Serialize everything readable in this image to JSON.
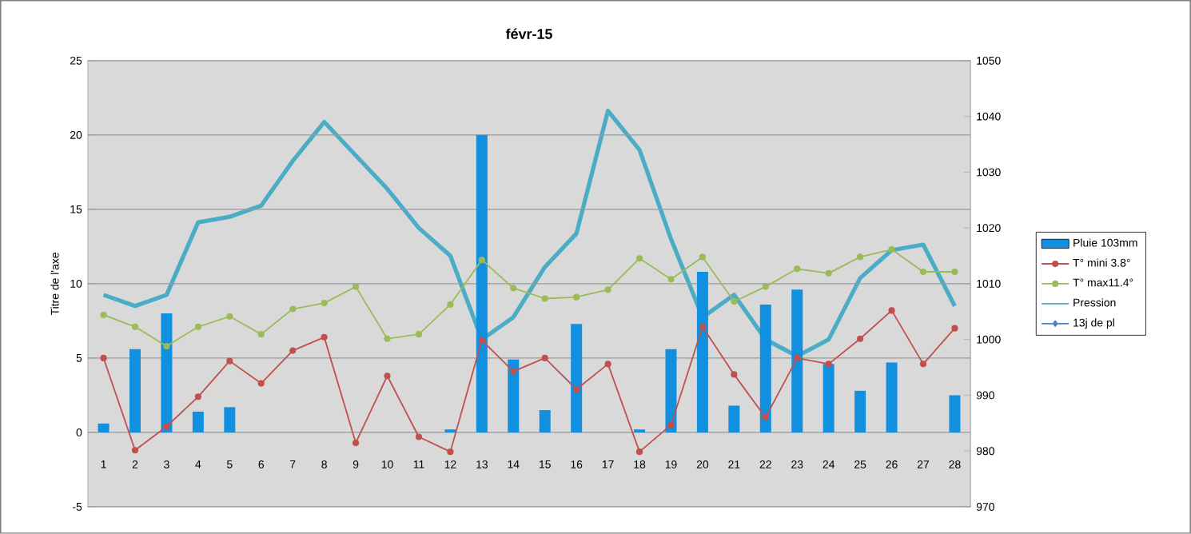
{
  "chart_data": {
    "type": "bar",
    "title": "févr-15",
    "ylabel": "Titre de l'axe",
    "categories": [
      "1",
      "2",
      "3",
      "4",
      "5",
      "6",
      "7",
      "8",
      "9",
      "10",
      "11",
      "12",
      "13",
      "14",
      "15",
      "16",
      "17",
      "18",
      "19",
      "20",
      "21",
      "22",
      "23",
      "24",
      "25",
      "26",
      "27",
      "28"
    ],
    "series": [
      {
        "name": "Pluie 103mm",
        "color": "#1290e0",
        "values": [
          0.6,
          5.6,
          8.0,
          1.4,
          1.7,
          null,
          null,
          null,
          null,
          null,
          null,
          0.2,
          20.0,
          4.9,
          1.5,
          7.3,
          null,
          0.2,
          5.6,
          10.8,
          1.8,
          8.6,
          9.6,
          4.6,
          2.8,
          4.7,
          null,
          2.5
        ]
      },
      {
        "name": "T° mini 3.8°",
        "type": "line",
        "color": "#c0504d",
        "marker": "circle",
        "values": [
          5.0,
          -1.2,
          0.4,
          2.4,
          4.8,
          3.3,
          5.5,
          6.4,
          -0.7,
          3.8,
          -0.3,
          -1.3,
          6.2,
          4.1,
          5.0,
          2.9,
          4.6,
          -1.3,
          0.5,
          7.1,
          3.9,
          1.0,
          5.0,
          4.6,
          6.3,
          8.2,
          4.6,
          7.0
        ]
      },
      {
        "name": "T° max11.4°",
        "type": "line",
        "color": "#9bbb59",
        "marker": "circle",
        "values": [
          7.9,
          7.1,
          5.8,
          7.1,
          7.8,
          6.6,
          8.3,
          8.7,
          9.8,
          6.3,
          6.6,
          8.6,
          11.6,
          9.7,
          9.0,
          9.1,
          9.6,
          11.7,
          10.3,
          11.8,
          8.8,
          9.8,
          11.0,
          10.7,
          11.8,
          12.3,
          10.8,
          10.8
        ]
      },
      {
        "name": "Pression",
        "type": "line",
        "axis": "y2",
        "color": "#4bacc6",
        "values": [
          1008,
          1006,
          1008,
          1021,
          1022,
          1024,
          1032,
          1039,
          1033,
          1027,
          1020,
          1015,
          1000,
          1004,
          1013,
          1019,
          1041,
          1034,
          1018,
          1004,
          1008,
          1000,
          997,
          1000,
          1011,
          1016,
          1017,
          1006
        ]
      },
      {
        "name": "13j de pl",
        "type": "line",
        "color": "#4f81bd",
        "marker": "diamond",
        "values": [
          null,
          null,
          null,
          null,
          null,
          null,
          null,
          null,
          null,
          null,
          null,
          null,
          null,
          null,
          null,
          null,
          null,
          null,
          null,
          null,
          null,
          null,
          null,
          null,
          null,
          null,
          null,
          null
        ]
      }
    ],
    "ylim": [
      -5,
      25
    ],
    "yticks": [
      -5,
      0,
      5,
      10,
      15,
      20,
      25
    ],
    "y2lim": [
      970,
      1050
    ],
    "y2ticks": [
      970,
      980,
      990,
      1000,
      1010,
      1020,
      1030,
      1040,
      1050
    ],
    "grid": "y",
    "legend": "right"
  }
}
